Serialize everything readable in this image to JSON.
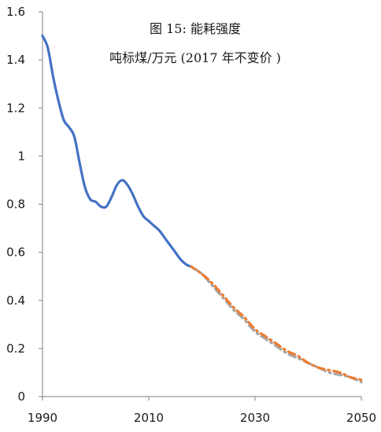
{
  "chart_data": {
    "type": "line",
    "title": "图 15: 能耗强度",
    "subtitle": "吨标煤/万元 (2017 年不变价 )",
    "xlabel": "",
    "ylabel": "",
    "xlim": [
      1990,
      2050
    ],
    "ylim": [
      0,
      1.6
    ],
    "x_ticks": [
      "1990",
      "2010",
      "2030",
      "2050"
    ],
    "x_tick_values": [
      1990,
      2010,
      2030,
      2050
    ],
    "y_ticks": [
      "0",
      "0.2",
      "0.4",
      "0.6",
      "0.8",
      "1",
      "1.2",
      "1.4",
      "1.6"
    ],
    "y_tick_values": [
      0,
      0.2,
      0.4,
      0.6,
      0.8,
      1.0,
      1.2,
      1.4,
      1.6
    ],
    "grid": false,
    "series": [
      {
        "style": "solid",
        "color": "#4472C4",
        "x": [
          1990,
          1991,
          1992,
          1993,
          1994,
          1995,
          1996,
          1997,
          1998,
          1999,
          2000,
          2001,
          2002,
          2003,
          2004,
          2005,
          2006,
          2007,
          2008,
          2009,
          2010,
          2011,
          2012,
          2013,
          2014,
          2015,
          2016,
          2017,
          2018
        ],
        "y": [
          1.5,
          1.45,
          1.33,
          1.23,
          1.15,
          1.12,
          1.08,
          0.97,
          0.87,
          0.82,
          0.81,
          0.79,
          0.79,
          0.83,
          0.88,
          0.9,
          0.88,
          0.84,
          0.79,
          0.75,
          0.73,
          0.71,
          0.69,
          0.66,
          0.63,
          0.6,
          0.57,
          0.55,
          0.54
        ]
      },
      {
        "style": "dash-dot",
        "color": "#A5A5A5",
        "x": [
          2018,
          2020,
          2022,
          2024,
          2026,
          2028,
          2030,
          2032,
          2034,
          2036,
          2038,
          2040,
          2042,
          2044,
          2046,
          2048,
          2050
        ],
        "y": [
          0.54,
          0.51,
          0.46,
          0.41,
          0.36,
          0.32,
          0.27,
          0.24,
          0.21,
          0.18,
          0.16,
          0.14,
          0.12,
          0.1,
          0.09,
          0.08,
          0.06
        ]
      },
      {
        "style": "dash-dot",
        "color": "#ED7D31",
        "x": [
          2018,
          2020,
          2022,
          2024,
          2026,
          2028,
          2030,
          2032,
          2034,
          2036,
          2038,
          2040,
          2042,
          2044,
          2046,
          2048,
          2050
        ],
        "y": [
          0.54,
          0.51,
          0.47,
          0.42,
          0.37,
          0.33,
          0.28,
          0.25,
          0.22,
          0.19,
          0.17,
          0.14,
          0.12,
          0.11,
          0.1,
          0.08,
          0.07
        ]
      }
    ]
  }
}
